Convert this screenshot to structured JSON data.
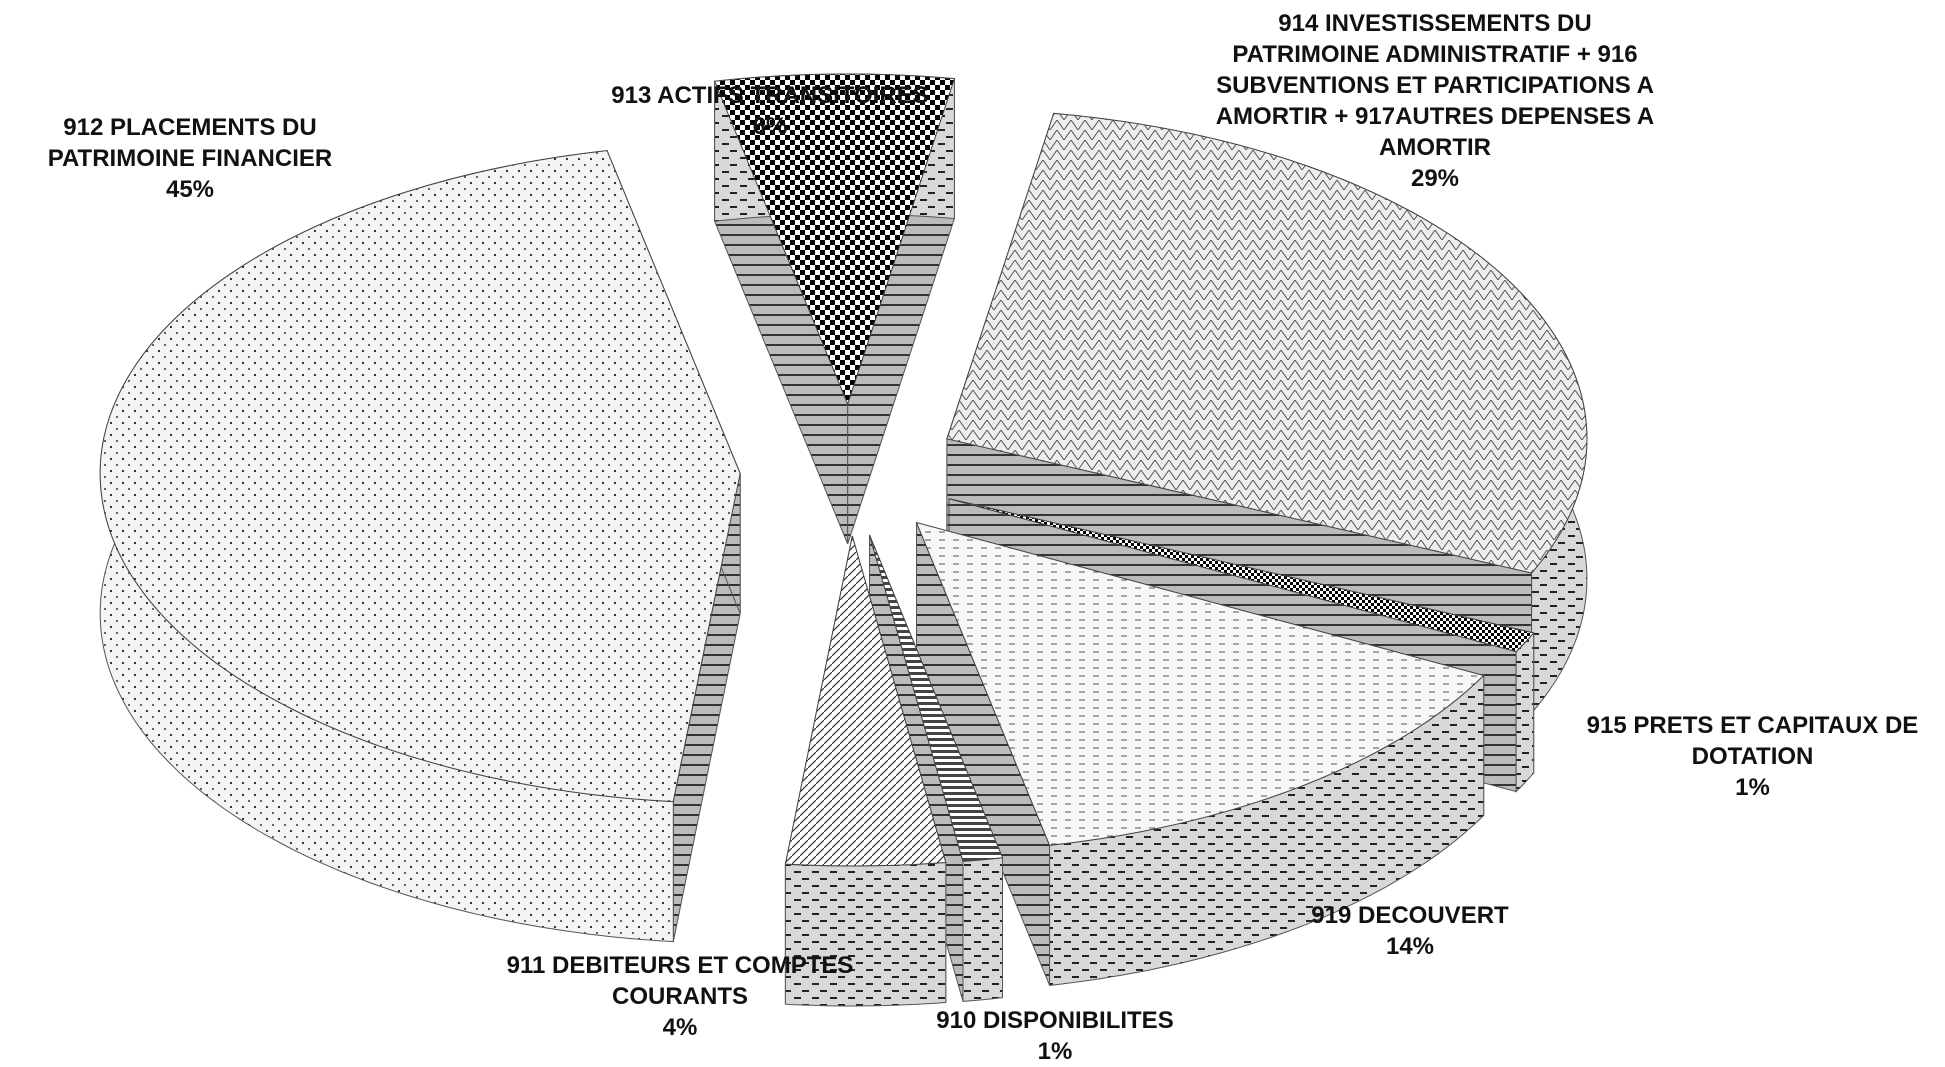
{
  "chart_data": {
    "type": "pie3d",
    "categories": [
      "910 DISPONIBILITES",
      "911 DEBITEURS ET COMPTES COURANTS",
      "912 PLACEMENTS DU PATRIMOINE FINANCIER",
      "913 ACTIFS TRANSITOIRES",
      "914 INVESTISSEMENTS DU PATRIMOINE ADMINISTRATIF + 916 SUBVENTIONS ET PARTICIPATIONS A AMORTIR + 917AUTRES DEPENSES A AMORTIR",
      "915 PRETS ET CAPITAUX DE DOTATION",
      "919 DECOUVERT"
    ],
    "values": [
      1,
      4,
      45,
      6,
      29,
      1,
      14
    ],
    "value_labels": [
      "1%",
      "4%",
      "45%",
      "6%",
      "29%",
      "1%",
      "14%"
    ]
  }
}
